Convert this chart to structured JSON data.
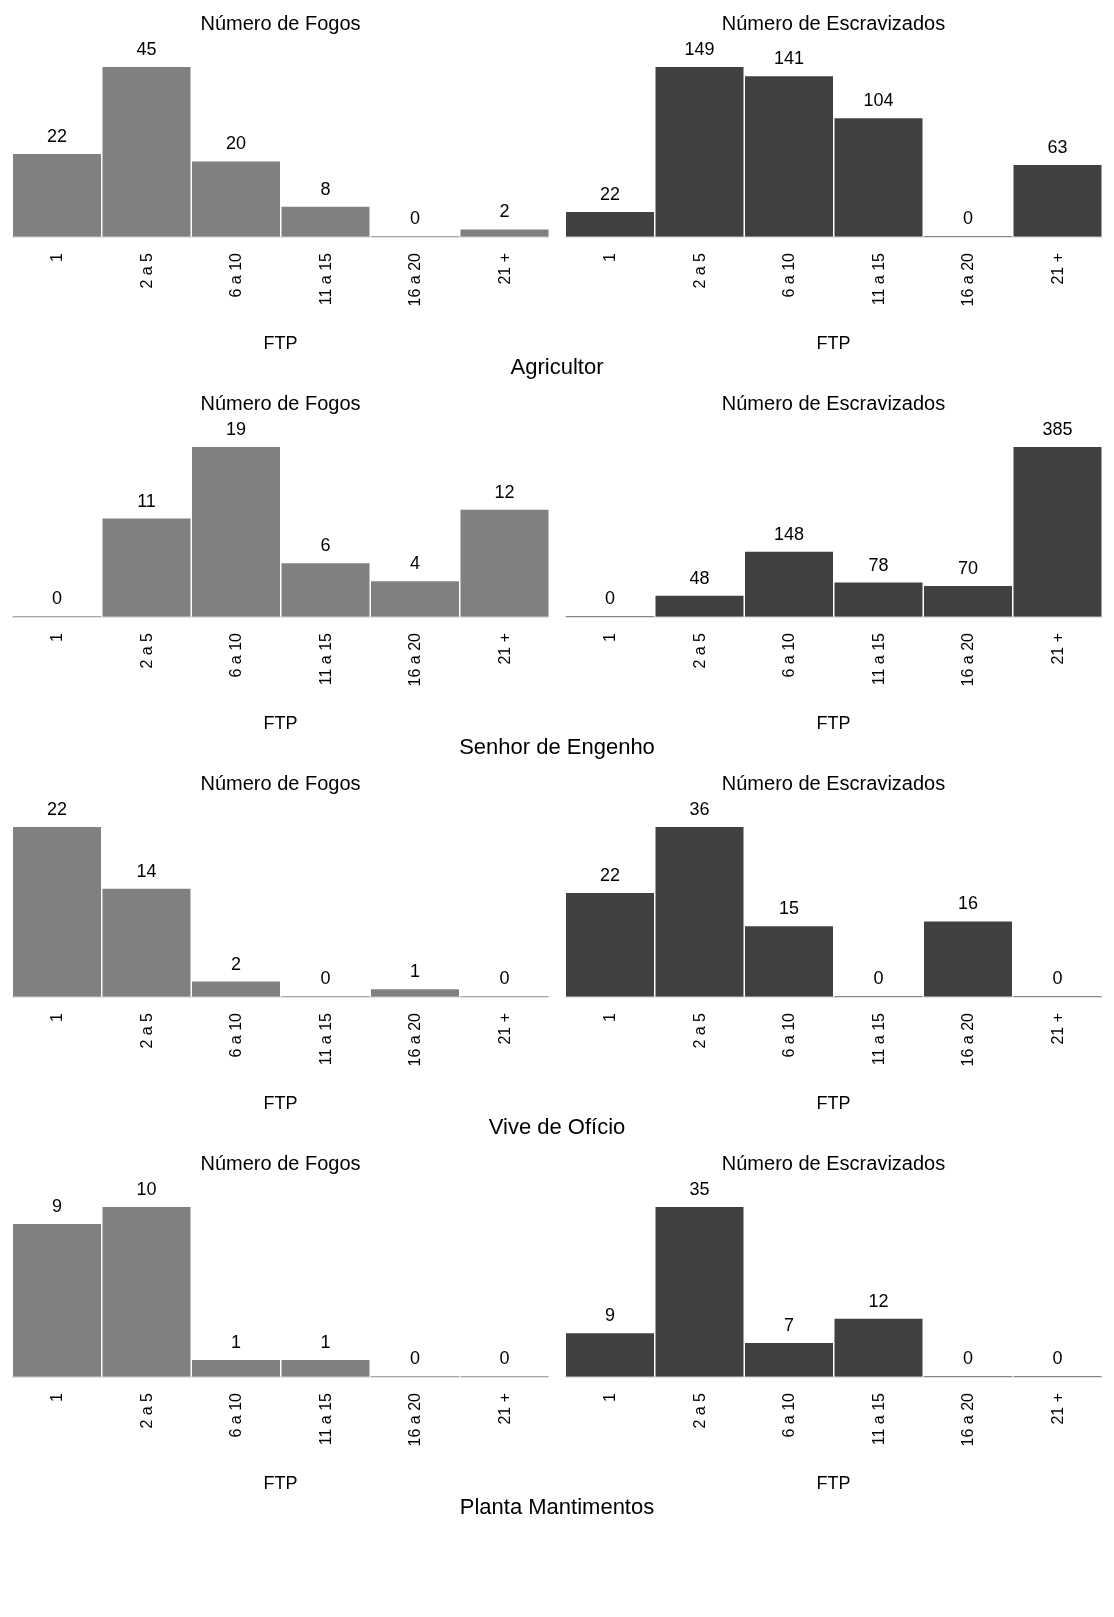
{
  "chart_data": [
    {
      "type": "bar",
      "title": "Número de Fogos",
      "xlabel": "FTP",
      "categories": [
        "1",
        "2 a 5",
        "6 a 10",
        "11 a 15",
        "16 a 20",
        "21 +"
      ],
      "values": [
        22,
        45,
        20,
        8,
        0,
        2
      ],
      "color": "#808080",
      "data_labels": true,
      "annotations": [
        "Agricultor"
      ]
    },
    {
      "type": "bar",
      "title": "Número de Escravizados",
      "xlabel": "FTP",
      "categories": [
        "1",
        "2 a 5",
        "6 a 10",
        "11 a 15",
        "16 a 20",
        "21 +"
      ],
      "values": [
        22,
        149,
        141,
        104,
        0,
        63
      ],
      "color": "#404040",
      "data_labels": true
    },
    {
      "type": "bar",
      "title": "Número de Fogos",
      "xlabel": "FTP",
      "categories": [
        "1",
        "2 a 5",
        "6 a 10",
        "11 a 15",
        "16 a 20",
        "21 +"
      ],
      "values": [
        0,
        11,
        19,
        6,
        4,
        12
      ],
      "color": "#808080",
      "data_labels": true,
      "annotations": [
        "Senhor de Engenho"
      ]
    },
    {
      "type": "bar",
      "title": "Número de Escravizados",
      "xlabel": "FTP",
      "categories": [
        "1",
        "2 a 5",
        "6 a 10",
        "11 a 15",
        "16 a 20",
        "21 +"
      ],
      "values": [
        0,
        48,
        148,
        78,
        70,
        385
      ],
      "color": "#404040",
      "data_labels": true
    },
    {
      "type": "bar",
      "title": "Número de Fogos",
      "xlabel": "FTP",
      "categories": [
        "1",
        "2 a 5",
        "6 a 10",
        "11 a 15",
        "16 a 20",
        "21 +"
      ],
      "values": [
        22,
        14,
        2,
        0,
        1,
        0
      ],
      "color": "#808080",
      "data_labels": true,
      "annotations": [
        "Vive de Ofício"
      ]
    },
    {
      "type": "bar",
      "title": "Número de Escravizados",
      "xlabel": "FTP",
      "categories": [
        "1",
        "2 a 5",
        "6 a 10",
        "11 a 15",
        "16 a 20",
        "21 +"
      ],
      "values": [
        22,
        36,
        15,
        0,
        16,
        0
      ],
      "color": "#404040",
      "data_labels": true
    },
    {
      "type": "bar",
      "title": "Número de Fogos",
      "xlabel": "FTP",
      "categories": [
        "1",
        "2 a 5",
        "6 a 10",
        "11 a 15",
        "16 a 20",
        "21 +"
      ],
      "values": [
        9,
        10,
        1,
        1,
        0,
        0
      ],
      "color": "#808080",
      "data_labels": true,
      "annotations": [
        "Planta Mantimentos"
      ]
    },
    {
      "type": "bar",
      "title": "Número de Escravizados",
      "xlabel": "FTP",
      "categories": [
        "1",
        "2 a 5",
        "6 a 10",
        "11 a 15",
        "16 a 20",
        "21 +"
      ],
      "values": [
        9,
        35,
        7,
        12,
        0,
        0
      ],
      "color": "#404040",
      "data_labels": true
    }
  ]
}
